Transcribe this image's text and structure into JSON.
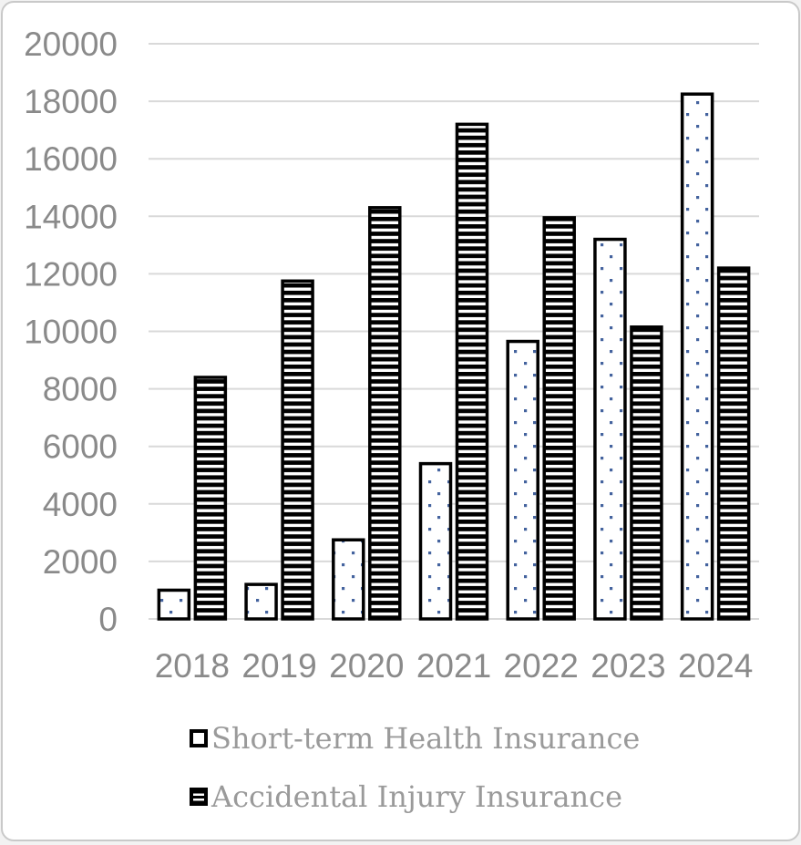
{
  "window": {
    "background": "#ffffff",
    "frame_border_color": "#c9c9c9"
  },
  "chart_data": {
    "type": "bar",
    "title": "",
    "categories": [
      "2018",
      "2019",
      "2020",
      "2021",
      "2022",
      "2023",
      "2024"
    ],
    "series": [
      {
        "name": "Short-term Health Insurance",
        "pattern": "blue-dots-on-white",
        "values": [
          1000,
          1200,
          2750,
          5400,
          9650,
          13200,
          18250
        ]
      },
      {
        "name": "Accidental Injury Insurance",
        "pattern": "black-horizontal-stripes",
        "values": [
          8400,
          11750,
          14300,
          17200,
          13950,
          10150,
          12200
        ]
      }
    ],
    "ylim": [
      0,
      20000
    ],
    "ytick_step": 2000,
    "y_ticks": [
      0,
      2000,
      4000,
      6000,
      8000,
      10000,
      12000,
      14000,
      16000,
      18000,
      20000
    ],
    "xlabel": "",
    "ylabel": "",
    "grid": "horizontal",
    "legend_position": "bottom-left",
    "colors": {
      "bar_outline": "#000000",
      "dot_blue": "#44639e",
      "stripe_black": "#000000",
      "bar_background": "#ffffff",
      "gridline": "#d9d9d9",
      "axis_text": "#8a8a8a",
      "legend_text": "#9a9a9a"
    }
  }
}
